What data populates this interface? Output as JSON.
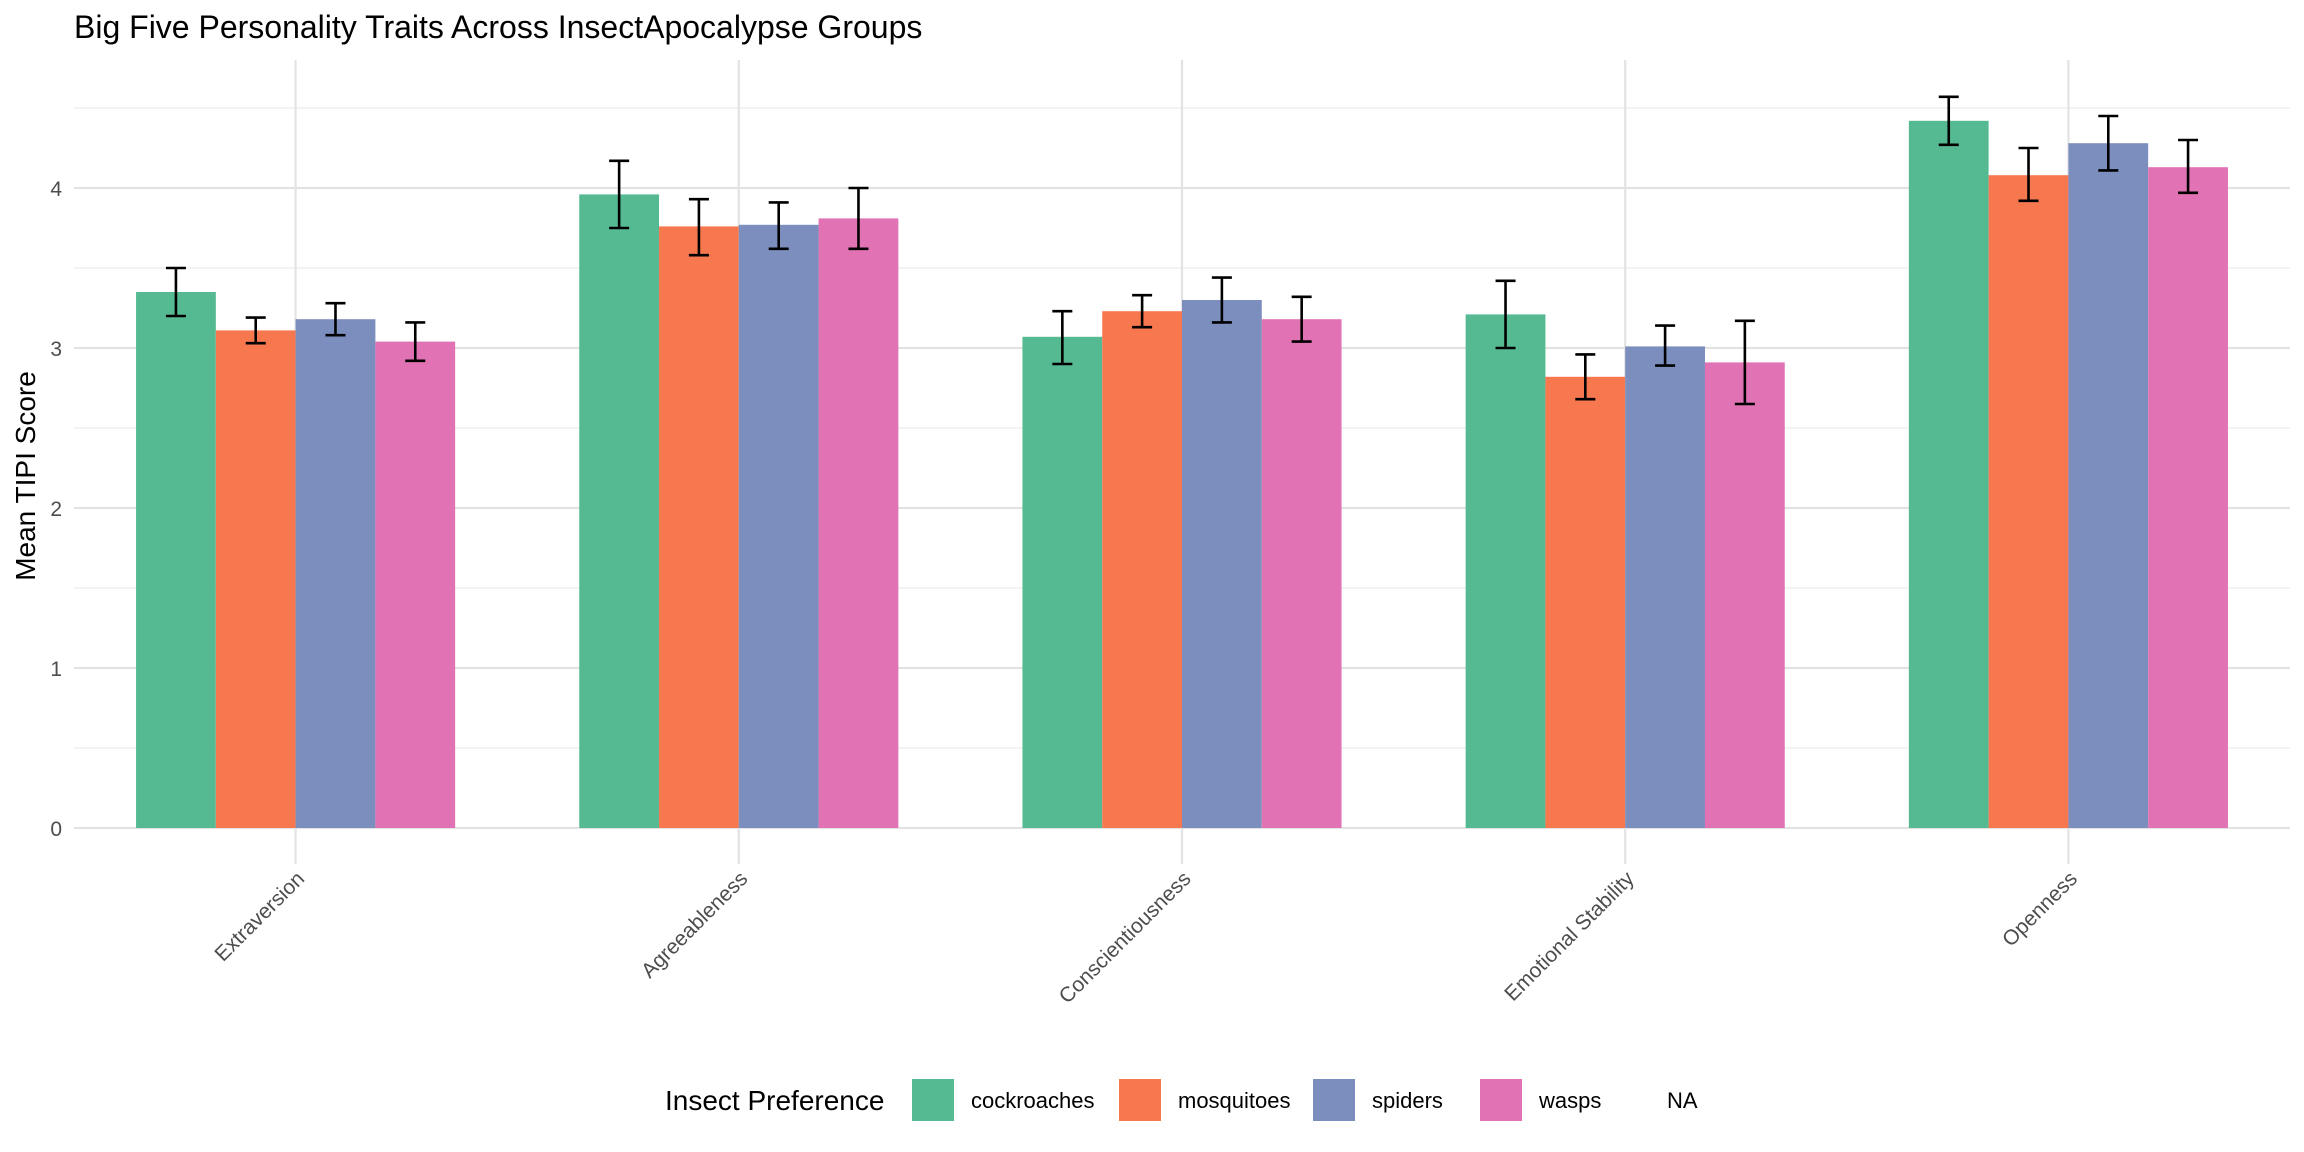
{
  "chart_data": {
    "type": "bar",
    "title": "Big Five Personality Traits Across InsectApocalypse Groups",
    "xlabel": "",
    "ylabel": "Mean TIPI Score",
    "ylim": [
      0,
      4.8
    ],
    "yticks": [
      0,
      1,
      2,
      3,
      4
    ],
    "grid": true,
    "legend_position": "bottom",
    "legend_title": "Insect Preference",
    "legend_na_label": "NA",
    "categories": [
      "Extraversion",
      "Agreeableness",
      "Conscientiousness",
      "Emotional Stability",
      "Openness"
    ],
    "series": [
      {
        "name": "cockroaches",
        "color": "#55BA92",
        "values": [
          3.35,
          3.96,
          3.07,
          3.21,
          4.42
        ],
        "error_low": [
          3.2,
          3.75,
          2.9,
          3.0,
          4.27
        ],
        "error_high": [
          3.5,
          4.17,
          3.23,
          3.42,
          4.57
        ]
      },
      {
        "name": "mosquitoes",
        "color": "#F7784F",
        "values": [
          3.11,
          3.76,
          3.23,
          2.82,
          4.08
        ],
        "error_low": [
          3.03,
          3.58,
          3.13,
          2.68,
          3.92
        ],
        "error_high": [
          3.19,
          3.93,
          3.33,
          2.96,
          4.25
        ]
      },
      {
        "name": "spiders",
        "color": "#7C8EBE",
        "values": [
          3.18,
          3.77,
          3.3,
          3.01,
          4.28
        ],
        "error_low": [
          3.08,
          3.62,
          3.16,
          2.89,
          4.11
        ],
        "error_high": [
          3.28,
          3.91,
          3.44,
          3.14,
          4.45
        ]
      },
      {
        "name": "wasps",
        "color": "#E173B5",
        "values": [
          3.04,
          3.81,
          3.18,
          2.91,
          4.13
        ],
        "error_low": [
          2.92,
          3.62,
          3.04,
          2.65,
          3.97
        ],
        "error_high": [
          3.16,
          4.0,
          3.32,
          3.17,
          4.3
        ]
      }
    ]
  }
}
